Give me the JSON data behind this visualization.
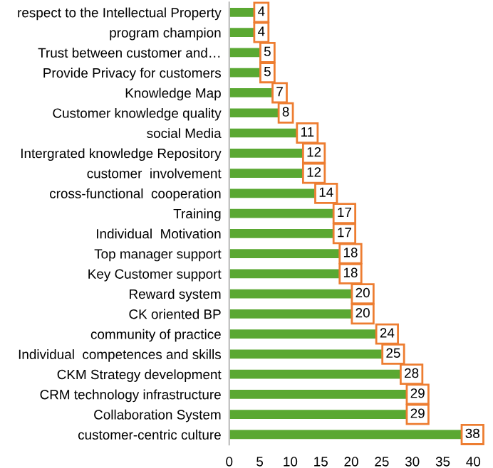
{
  "chart_data": {
    "type": "bar",
    "orientation": "horizontal",
    "categories": [
      "respect to the Intellectual Property",
      "program champion",
      "Trust between customer and…",
      "Provide Privacy for customers",
      "Knowledge Map",
      "Customer knowledge quality",
      "social Media",
      "Intergrated knowledge Repository",
      "customer  involvement",
      "cross-functional  cooperation",
      "Training",
      "Individual  Motivation",
      "Top manager support",
      "Key Customer support",
      "Reward system",
      "CK oriented BP",
      "community of practice",
      "Individual  competences and skills",
      "CKM Strategy development",
      "CRM technology infrastructure",
      "Collaboration System",
      "customer-centric culture"
    ],
    "values": [
      4,
      4,
      5,
      5,
      7,
      8,
      11,
      12,
      12,
      14,
      17,
      17,
      18,
      18,
      20,
      20,
      24,
      25,
      28,
      29,
      29,
      38
    ],
    "color": "#5aa832",
    "data_labels": true,
    "xlim": [
      0,
      40
    ],
    "xticks": [
      0,
      5,
      10,
      15,
      20,
      25,
      30,
      35,
      40
    ],
    "grid": false,
    "legend": false
  }
}
